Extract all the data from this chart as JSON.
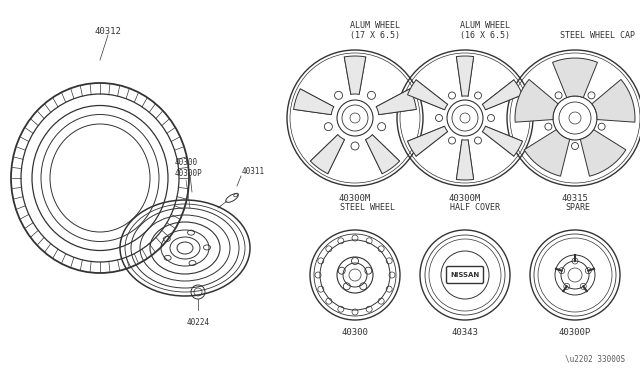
{
  "bg_color": "#ffffff",
  "line_color": "#333333",
  "watermark": "\\u2202 33000S",
  "labels": {
    "tire_code": "40312",
    "wheel_codes": [
      "40300",
      "40300P"
    ],
    "valve_code": "40311",
    "lug_code": "40224",
    "alum17_title": "ALUM WHEEL\n(17 X 6.5)",
    "alum17_code": "40300M",
    "alum16_title": "ALUM WHEEL\n(16 X 6.5)",
    "alum16_code": "40300M",
    "steel_cap_title": "STEEL WHEEL CAP",
    "steel_cap_code": "40315",
    "steel_wheel_title": "STEEL WHEEL",
    "steel_wheel_code": "40300",
    "half_cover_title": "HALF COVER",
    "half_cover_code": "40343",
    "spare_title": "SPARE",
    "spare_code": "40300P"
  },
  "fs_small": 5.5,
  "fs_label": 6.5,
  "fs_title": 6.0
}
